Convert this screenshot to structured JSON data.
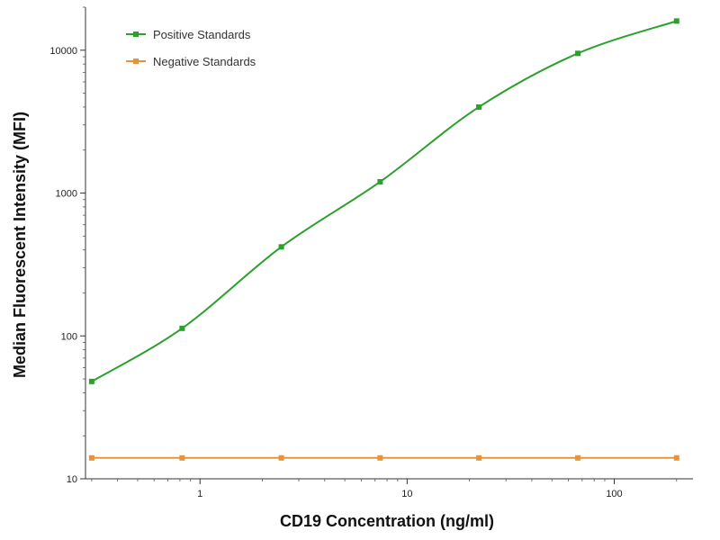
{
  "chart_data": {
    "type": "line",
    "title": "",
    "xlabel": "CD19 Concentration (ng/ml)",
    "ylabel": "Median  Fluorescent Intensity  (MFI)",
    "x_scale": "log",
    "y_scale": "log",
    "xlim": [
      0.28,
      240
    ],
    "ylim": [
      10,
      20000
    ],
    "x_ticks": [
      1,
      10,
      100
    ],
    "x_tick_labels": [
      "1",
      "10",
      "100"
    ],
    "y_ticks": [
      10,
      100,
      1000,
      10000
    ],
    "y_tick_labels": [
      "10",
      "100",
      "1000",
      "10000"
    ],
    "legend_position": "top-left",
    "grid": false,
    "series": [
      {
        "name": "Positive Standards",
        "color": "#2ca02c",
        "x": [
          0.3,
          0.82,
          2.47,
          7.41,
          22.2,
          66.7,
          200
        ],
        "y": [
          48,
          113,
          420,
          1200,
          4000,
          9500,
          16000
        ]
      },
      {
        "name": "Negative Standards",
        "color": "#e8933c",
        "x": [
          0.3,
          0.82,
          2.47,
          7.41,
          22.2,
          66.7,
          200
        ],
        "y": [
          14,
          14,
          14,
          14,
          14,
          14,
          14
        ]
      }
    ]
  }
}
